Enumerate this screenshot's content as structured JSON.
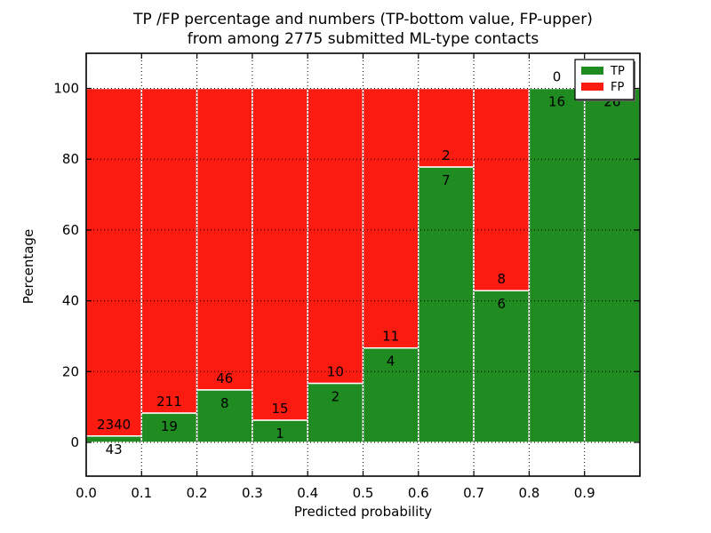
{
  "chart_data": {
    "type": "bar",
    "stacked": true,
    "orientation": "vertical",
    "title_lines": [
      "TP /FP percentage and numbers (TP-bottom value, FP-upper)",
      "from among 2775 submitted ML-type contacts"
    ],
    "xlabel": "Predicted probability",
    "ylabel": "Percentage",
    "x_tick_labels": [
      "0.0",
      "0.1",
      "0.2",
      "0.3",
      "0.4",
      "0.5",
      "0.6",
      "0.7",
      "0.8",
      "0.9"
    ],
    "y_tick_labels": [
      "0",
      "20",
      "40",
      "60",
      "80",
      "100"
    ],
    "y_ticks": [
      0,
      20,
      40,
      60,
      80,
      100
    ],
    "xlim": [
      0.0,
      1.0
    ],
    "ylim": [
      -10,
      110
    ],
    "bin_width": 0.1,
    "bin_starts": [
      0.0,
      0.1,
      0.2,
      0.3,
      0.4,
      0.5,
      0.6,
      0.7,
      0.8,
      0.9
    ],
    "grid": true,
    "units": "percent of bin total",
    "series": [
      {
        "name": "TP",
        "color": "#1f8b20",
        "values": [
          43,
          19,
          8,
          1,
          2,
          4,
          7,
          6,
          16,
          26
        ]
      },
      {
        "name": "FP",
        "color": "#fb1b10",
        "values": [
          2340,
          211,
          46,
          15,
          10,
          11,
          2,
          8,
          0,
          0
        ]
      }
    ],
    "tp_percentages": [
      1.8,
      8.26,
      14.81,
      6.25,
      16.67,
      26.67,
      77.78,
      42.86,
      100.0,
      100.0
    ],
    "legend": {
      "position": "upper right",
      "entries": [
        {
          "label": "TP",
          "color": "#1f8b20"
        },
        {
          "label": "FP",
          "color": "#fb1b10"
        }
      ]
    },
    "colors": {
      "tp": "#1f8b20",
      "fp": "#fb1b10",
      "bar_edge": "#ffffff",
      "grid": "#000000",
      "spine": "#000000",
      "text": "#000000",
      "legend_bg": "#ffffff",
      "legend_shadow": "#666666",
      "background": "#ffffff"
    }
  }
}
